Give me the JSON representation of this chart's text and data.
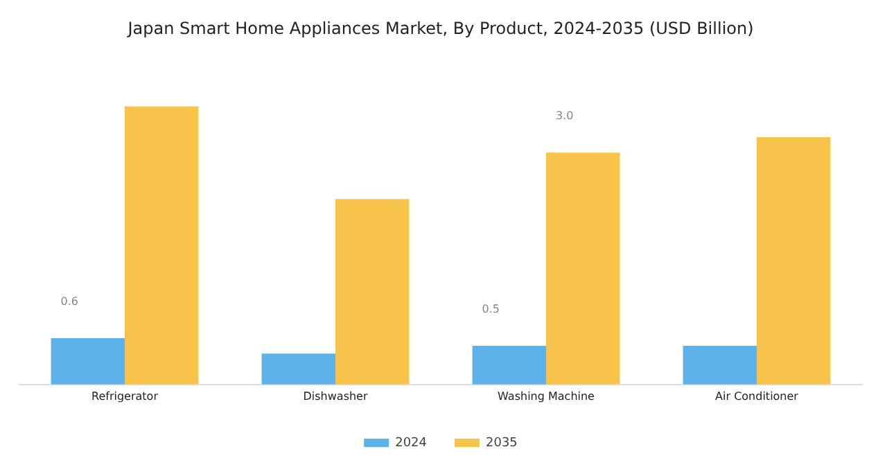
{
  "chart_data": {
    "type": "bar",
    "title": "Japan Smart Home Appliances Market, By Product, 2024-2035 (USD Billion)",
    "categories": [
      "Refrigerator",
      "Dishwasher",
      "Washing Machine",
      "Air Conditioner"
    ],
    "series": [
      {
        "name": "2024",
        "color": "#5db3e8",
        "values": [
          0.6,
          0.4,
          0.5,
          0.5
        ],
        "value_labels": [
          "0.6",
          null,
          "0.5",
          null
        ]
      },
      {
        "name": "2035",
        "color": "#f8c34a",
        "values": [
          3.6,
          2.4,
          3.0,
          3.2
        ],
        "value_labels": [
          null,
          null,
          "3.0",
          null
        ]
      }
    ],
    "legend": "bottom",
    "grid": false
  }
}
